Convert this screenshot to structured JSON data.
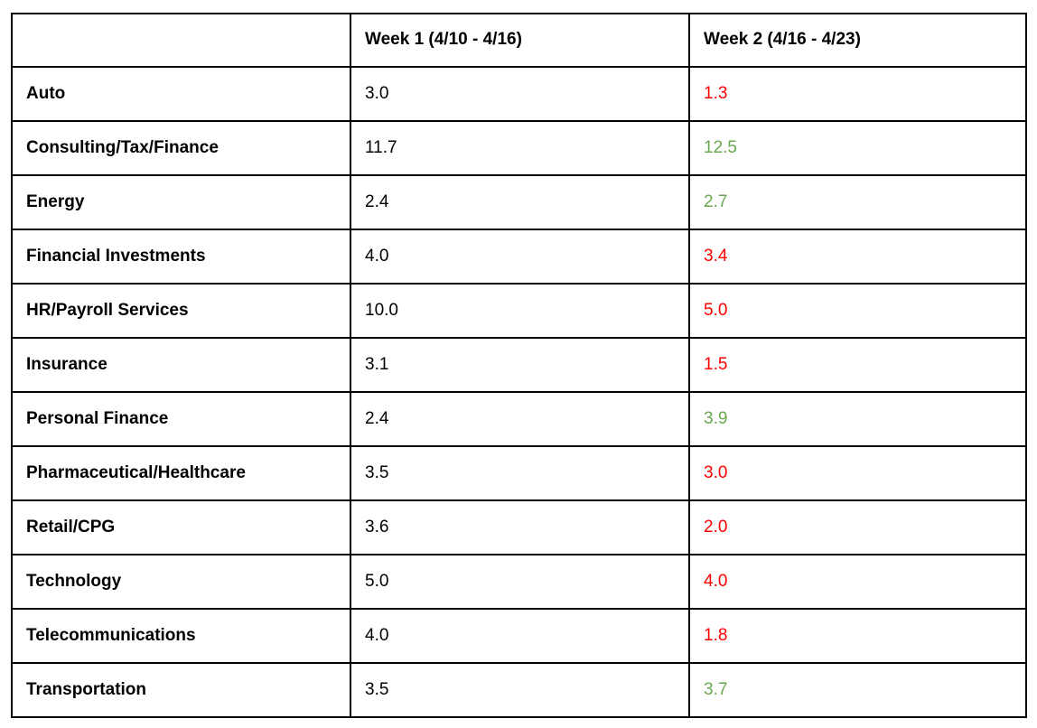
{
  "table": {
    "columns": [
      {
        "label": ""
      },
      {
        "label": "Week 1 (4/10 - 4/16)"
      },
      {
        "label": "Week 2 (4/16 - 4/23)"
      }
    ],
    "rows": [
      {
        "label": "Auto",
        "week1": "3.0",
        "week2": "1.3",
        "week2_trend": "decrease"
      },
      {
        "label": "Consulting/Tax/Finance",
        "week1": "11.7",
        "week2": "12.5",
        "week2_trend": "increase"
      },
      {
        "label": "Energy",
        "week1": "2.4",
        "week2": "2.7",
        "week2_trend": "increase"
      },
      {
        "label": "Financial Investments",
        "week1": "4.0",
        "week2": "3.4",
        "week2_trend": "decrease"
      },
      {
        "label": "HR/Payroll Services",
        "week1": "10.0",
        "week2": "5.0",
        "week2_trend": "decrease"
      },
      {
        "label": "Insurance",
        "week1": "3.1",
        "week2": "1.5",
        "week2_trend": "decrease"
      },
      {
        "label": "Personal Finance",
        "week1": "2.4",
        "week2": "3.9",
        "week2_trend": "increase"
      },
      {
        "label": "Pharmaceutical/Healthcare",
        "week1": "3.5",
        "week2": "3.0",
        "week2_trend": "decrease"
      },
      {
        "label": "Retail/CPG",
        "week1": "3.6",
        "week2": "2.0",
        "week2_trend": "decrease"
      },
      {
        "label": "Technology",
        "week1": "5.0",
        "week2": "4.0",
        "week2_trend": "decrease"
      },
      {
        "label": "Telecommunications",
        "week1": "4.0",
        "week2": "1.8",
        "week2_trend": "decrease"
      },
      {
        "label": "Transportation",
        "week1": "3.5",
        "week2": "3.7",
        "week2_trend": "increase"
      }
    ],
    "colors": {
      "decrease": "#ff0000",
      "increase": "#6aa84f",
      "text": "#000000",
      "border": "#000000",
      "background": "#ffffff"
    }
  },
  "chart_data": {
    "type": "table",
    "title": "",
    "categories": [
      "Auto",
      "Consulting/Tax/Finance",
      "Energy",
      "Financial Investments",
      "HR/Payroll Services",
      "Insurance",
      "Personal Finance",
      "Pharmaceutical/Healthcare",
      "Retail/CPG",
      "Technology",
      "Telecommunications",
      "Transportation"
    ],
    "series": [
      {
        "name": "Week 1 (4/10 - 4/16)",
        "values": [
          3.0,
          11.7,
          2.4,
          4.0,
          10.0,
          3.1,
          2.4,
          3.5,
          3.6,
          5.0,
          4.0,
          3.5
        ]
      },
      {
        "name": "Week 2 (4/16 - 4/23)",
        "values": [
          1.3,
          12.5,
          2.7,
          3.4,
          5.0,
          1.5,
          3.9,
          3.0,
          2.0,
          4.0,
          1.8,
          3.7
        ]
      }
    ]
  }
}
